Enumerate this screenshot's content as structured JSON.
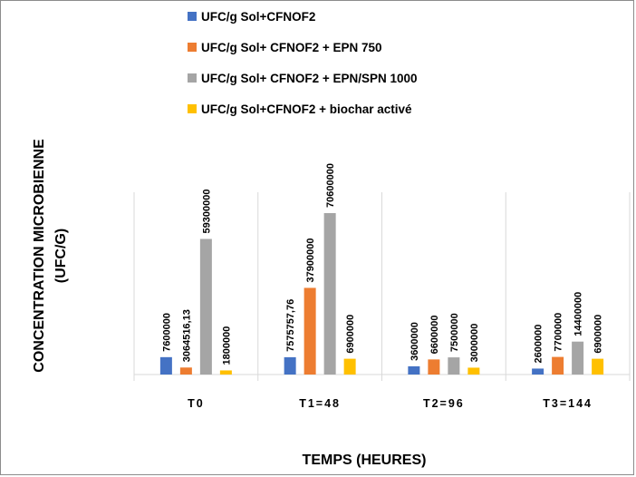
{
  "chart_data": {
    "type": "bar",
    "title": "",
    "xlabel": "TEMPS (HEURES)",
    "ylabel_line1": "CONCENTRATION MICROBIENNE",
    "ylabel_line2": "(UFC/G)",
    "categories": [
      "T0",
      "T1=48",
      "T2=96",
      "T3=144"
    ],
    "series": [
      {
        "name": "UFC/g Sol+CFNOF2",
        "color": "#4472C4",
        "values": [
          7600000,
          7575757.76,
          3600000,
          2600000
        ],
        "labels": [
          "7600000",
          "7575757,76",
          "3600000",
          "2600000"
        ]
      },
      {
        "name": "UFC/g Sol+ CFNOF2 + EPN 750",
        "color": "#ED7D31",
        "values": [
          3064516.13,
          37900000,
          6600000,
          7700000
        ],
        "labels": [
          "3064516,13",
          "37900000",
          "6600000",
          "7700000"
        ]
      },
      {
        "name": "UFC/g Sol+ CFNOF2 + EPN/SPN 1000",
        "color": "#A5A5A5",
        "values": [
          59300000,
          70600000,
          7500000,
          14400000
        ],
        "labels": [
          "59300000",
          "70600000",
          "7500000",
          "14400000"
        ]
      },
      {
        "name": "UFC/g Sol+CFNOF2 + biochar activé",
        "color": "#FFC000",
        "values": [
          1800000,
          6900000,
          3000000,
          6900000
        ],
        "labels": [
          "1800000",
          "6900000",
          "3000000",
          "6900000"
        ]
      }
    ],
    "ylim": [
      0,
      80000000
    ],
    "grid": false,
    "category_separators": true,
    "legend_position": "top"
  }
}
